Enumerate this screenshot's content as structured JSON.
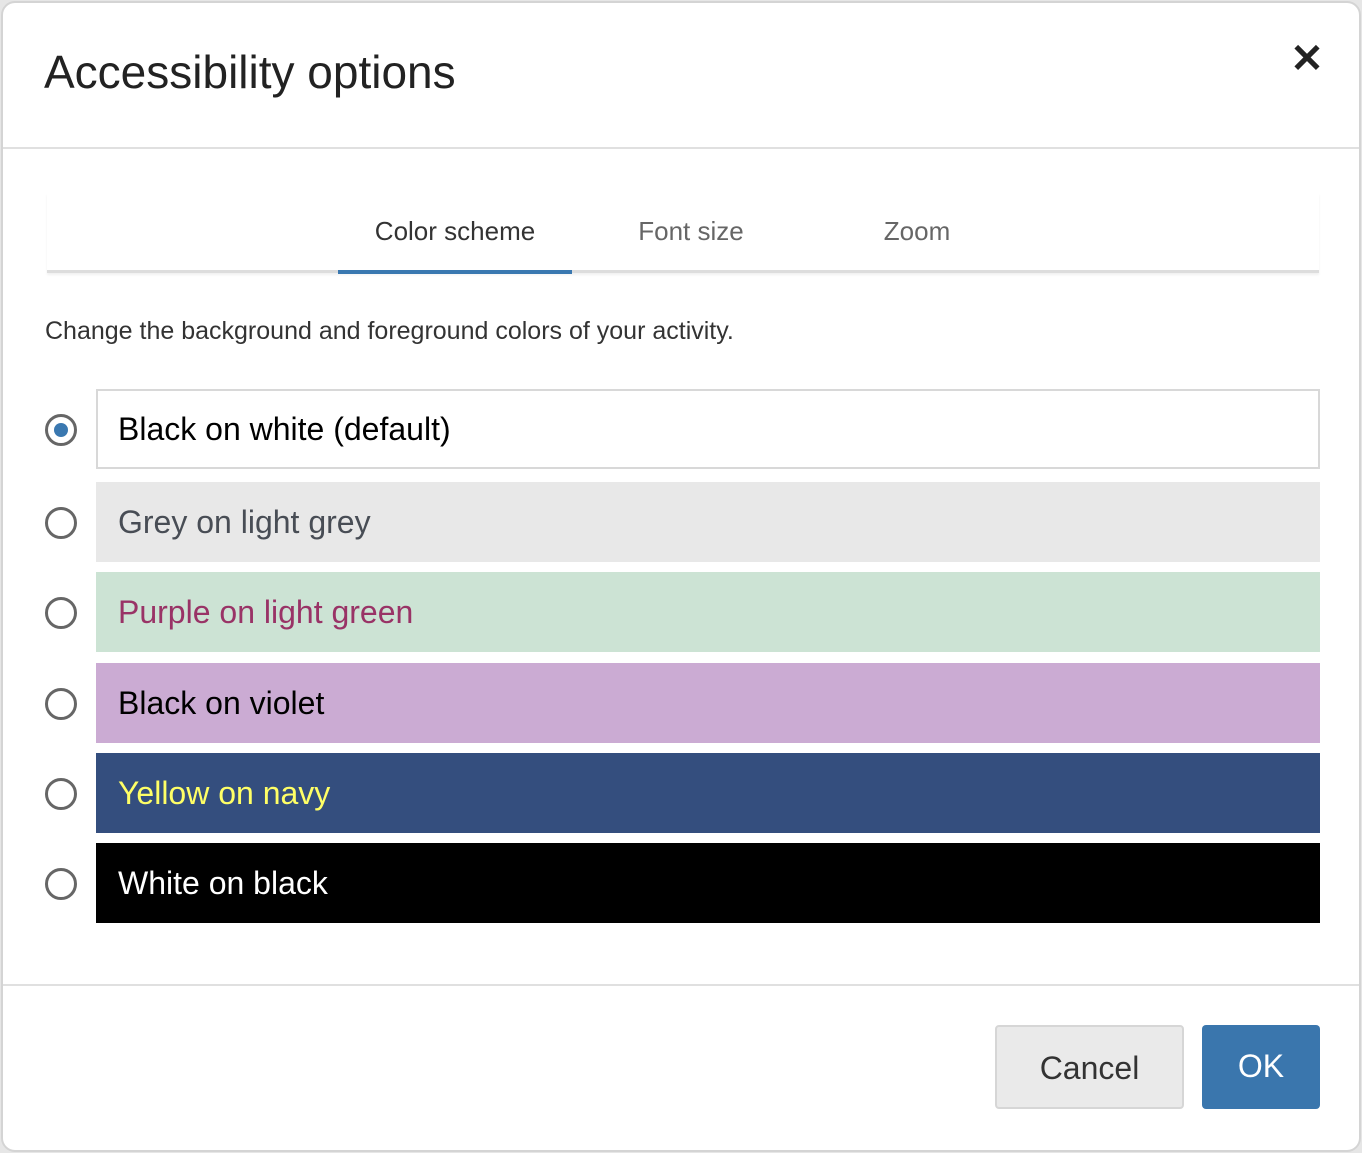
{
  "dialog": {
    "title": "Accessibility options",
    "close_icon": "close-icon"
  },
  "tabs": [
    {
      "label": "Color scheme",
      "active": true
    },
    {
      "label": "Font size",
      "active": false
    },
    {
      "label": "Zoom",
      "active": false
    }
  ],
  "description": "Change the background and foreground colors of your activity.",
  "options": [
    {
      "label": "Black on white (default)",
      "fg": "#000000",
      "bg": "#ffffff",
      "selected": true
    },
    {
      "label": "Grey on light grey",
      "fg": "#484d55",
      "bg": "#e8e8e8",
      "selected": false
    },
    {
      "label": "Purple on light green",
      "fg": "#993366",
      "bg": "#cce3d4",
      "selected": false
    },
    {
      "label": "Black on violet",
      "fg": "#000000",
      "bg": "#cbabd3",
      "selected": false
    },
    {
      "label": "Yellow on navy",
      "fg": "#ffff66",
      "bg": "#344e7e",
      "selected": false
    },
    {
      "label": "White on black",
      "fg": "#ffffff",
      "bg": "#000000",
      "selected": false
    }
  ],
  "buttons": {
    "cancel": "Cancel",
    "ok": "OK"
  },
  "colors": {
    "accent": "#3a76ad"
  }
}
